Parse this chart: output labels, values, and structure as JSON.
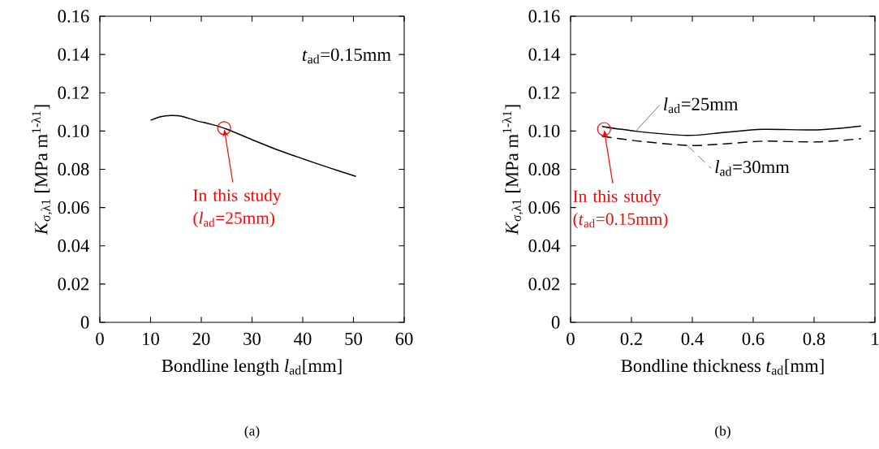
{
  "chart_data": [
    {
      "type": "line",
      "title": "(a)",
      "xlabel": "Bondline length *l*$_{ad}$[mm]",
      "ylabel": "*K*$_{σ,λ1}$ [MPa m$^{1-λ1}$]",
      "xlim": [
        0,
        60
      ],
      "xticks": [
        0,
        10,
        20,
        30,
        40,
        50,
        60
      ],
      "ylim": [
        0,
        0.16
      ],
      "yticks": [
        {
          "value": 0,
          "label": "0"
        },
        {
          "value": 0.02,
          "label": "0.02"
        },
        {
          "value": 0.04,
          "label": "0.04"
        },
        {
          "value": 0.06,
          "label": "0.06"
        },
        {
          "value": 0.08,
          "label": "0.08"
        },
        {
          "value": 0.1,
          "label": "0.10"
        },
        {
          "value": 0.12,
          "label": "0.12"
        },
        {
          "value": 0.14,
          "label": "0.14"
        },
        {
          "value": 0.16,
          "label": "0.16"
        }
      ],
      "series": [
        {
          "color": "#000000",
          "line_style": "solid",
          "x": [
            10,
            12,
            14,
            16,
            19,
            22,
            25,
            30,
            35,
            40,
            45,
            50.5
          ],
          "values": [
            0.1056,
            0.1075,
            0.1081,
            0.1078,
            0.1054,
            0.1035,
            0.101,
            0.0955,
            0.0902,
            0.0855,
            0.081,
            0.0763
          ]
        },
        {
          "type": "scatter",
          "marker": "circle",
          "color": "#ff0000",
          "x": [
            24.5
          ],
          "values": [
            0.1015
          ]
        }
      ],
      "annotations": [
        "*t*$_{ad}$=0.15mm",
        {
          "text": "In this study (*l*$_{ad}$=25mm)",
          "x": 24.5,
          "y": 0.1015
        }
      ]
    },
    {
      "type": "line",
      "title": "(b)",
      "xlabel": "Bondline thickness *t*$_{ad}$[mm]",
      "ylabel": "*K*$_{σ,λ1}$ [MPa m$^{1-λ1}$]",
      "xlim": [
        0,
        1
      ],
      "xticks": [
        0,
        0.2,
        0.4,
        0.6,
        0.8,
        1
      ],
      "ylim": [
        0,
        0.16
      ],
      "yticks": [
        {
          "value": 0,
          "label": "0"
        },
        {
          "value": 0.02,
          "label": "0.02"
        },
        {
          "value": 0.04,
          "label": "0.04"
        },
        {
          "value": 0.06,
          "label": "0.06"
        },
        {
          "value": 0.08,
          "label": "0.08"
        },
        {
          "value": 0.1,
          "label": "0.10"
        },
        {
          "value": 0.12,
          "label": "0.12"
        },
        {
          "value": 0.14,
          "label": "0.14"
        },
        {
          "value": 0.16,
          "label": "0.16"
        }
      ],
      "series": [
        {
          "name": "*l*$_{ad}$=25mm",
          "color": "#000000",
          "line_style": "solid",
          "x": [
            0.103,
            0.214,
            0.383,
            0.5,
            0.632,
            0.81,
            0.954
          ],
          "values": [
            0.1024,
            0.0999,
            0.0977,
            0.0992,
            0.1009,
            0.1006,
            0.1026
          ]
        },
        {
          "name": "*l*$_{ad}$=30mm",
          "color": "#000000",
          "line_style": "dashed",
          "x": [
            0.103,
            0.214,
            0.383,
            0.5,
            0.632,
            0.81,
            0.954
          ],
          "values": [
            0.0973,
            0.0949,
            0.0925,
            0.0932,
            0.0947,
            0.0943,
            0.096
          ]
        },
        {
          "type": "scatter",
          "marker": "circle",
          "color": "#ff0000",
          "x": [
            0.11
          ],
          "values": [
            0.101
          ]
        }
      ],
      "annotations": [
        {
          "text": "In this study (*t*$_{ad}$=0.15mm)",
          "x": 0.11,
          "y": 0.101
        }
      ]
    }
  ]
}
